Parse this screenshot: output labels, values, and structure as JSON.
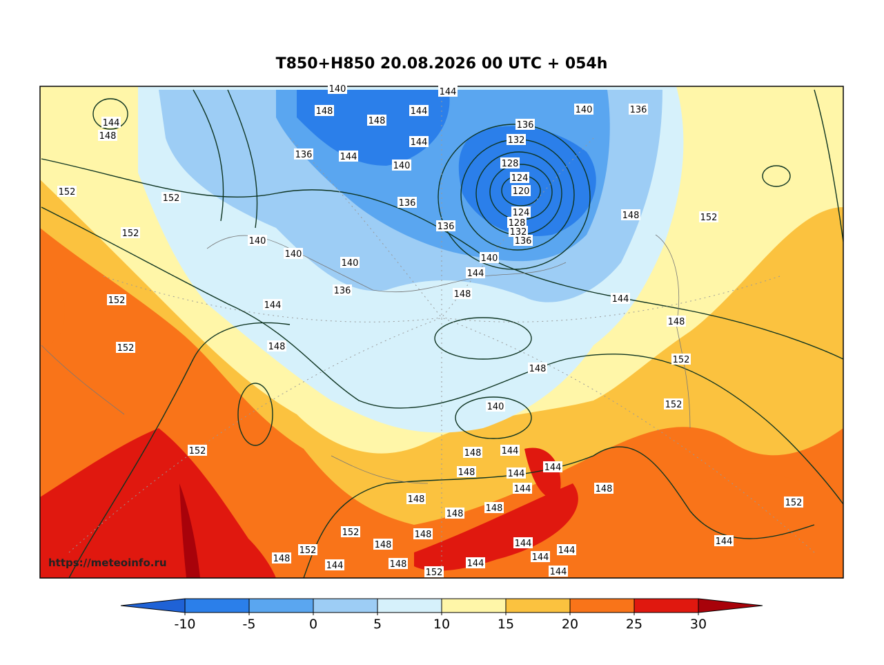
{
  "title": "T850+H850 20.08.2026 00 UTC + 054h",
  "watermark": "https://meteoinfo.ru",
  "colorbar": {
    "ticks": [
      -10,
      -5,
      0,
      5,
      10,
      15,
      20,
      25,
      30
    ],
    "colors": [
      "#1f62d6",
      "#2b7fea",
      "#5aa6f0",
      "#9dcdf5",
      "#d6f1fb",
      "#fff6a8",
      "#fbc23f",
      "#f97419",
      "#e0180f",
      "#a8020a"
    ]
  },
  "contour_labels": [
    "140",
    "144",
    "148",
    "148",
    "144",
    "144",
    "144",
    "148",
    "136",
    "144",
    "140",
    "136",
    "140",
    "136",
    "136",
    "132",
    "128",
    "124",
    "120",
    "124",
    "128",
    "132",
    "136",
    "136",
    "148",
    "152",
    "152",
    "152",
    "152",
    "140",
    "140",
    "140",
    "140",
    "144",
    "148",
    "136",
    "144",
    "152",
    "144",
    "148",
    "152",
    "148",
    "148",
    "152",
    "152",
    "140",
    "152",
    "148",
    "144",
    "148",
    "144",
    "144",
    "144",
    "148",
    "148",
    "148",
    "148",
    "152",
    "152",
    "148",
    "148",
    "144",
    "144",
    "148",
    "152",
    "144",
    "144",
    "144",
    "148",
    "144",
    "144",
    "152"
  ]
}
